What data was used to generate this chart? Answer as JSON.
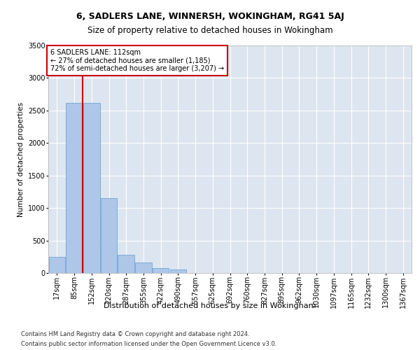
{
  "title1": "6, SADLERS LANE, WINNERSH, WOKINGHAM, RG41 5AJ",
  "title2": "Size of property relative to detached houses in Wokingham",
  "xlabel": "Distribution of detached houses by size in Wokingham",
  "ylabel": "Number of detached properties",
  "categories": [
    "17sqm",
    "85sqm",
    "152sqm",
    "220sqm",
    "287sqm",
    "355sqm",
    "422sqm",
    "490sqm",
    "557sqm",
    "625sqm",
    "692sqm",
    "760sqm",
    "827sqm",
    "895sqm",
    "962sqm",
    "1030sqm",
    "1097sqm",
    "1165sqm",
    "1232sqm",
    "1300sqm",
    "1367sqm"
  ],
  "values": [
    250,
    2620,
    2620,
    1150,
    280,
    165,
    75,
    50,
    0,
    0,
    0,
    0,
    0,
    0,
    0,
    0,
    0,
    0,
    0,
    0,
    0
  ],
  "bar_color": "#aec6e8",
  "bar_edgecolor": "#5a9fd4",
  "annotation_line1": "6 SADLERS LANE: 112sqm",
  "annotation_line2": "← 27% of detached houses are smaller (1,185)",
  "annotation_line3": "72% of semi-detached houses are larger (3,207) →",
  "annotation_box_facecolor": "#ffffff",
  "annotation_box_edgecolor": "#cc0000",
  "vline_color": "#cc0000",
  "vline_x": 1.5,
  "ylim": [
    0,
    3500
  ],
  "yticks": [
    0,
    500,
    1000,
    1500,
    2000,
    2500,
    3000,
    3500
  ],
  "background_color": "#dde5f0",
  "title1_fontsize": 9,
  "title2_fontsize": 8.5,
  "ylabel_fontsize": 7.5,
  "xlabel_fontsize": 8,
  "tick_fontsize": 7,
  "annotation_fontsize": 7,
  "footer1": "Contains HM Land Registry data © Crown copyright and database right 2024.",
  "footer2": "Contains public sector information licensed under the Open Government Licence v3.0.",
  "footer_fontsize": 6
}
